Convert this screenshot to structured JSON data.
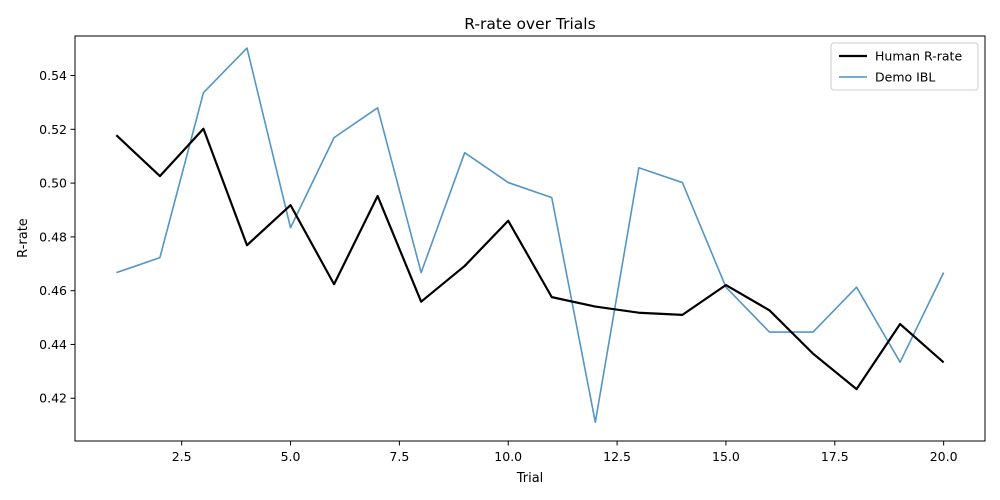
{
  "chart_data": {
    "type": "line",
    "title": "R-rate over Trials",
    "xlabel": "Trial",
    "ylabel": "R-rate",
    "xlim": [
      0.05,
      20.95
    ],
    "ylim": [
      0.4041,
      0.5547
    ],
    "xticks": [
      2.5,
      5.0,
      7.5,
      10.0,
      12.5,
      15.0,
      17.5,
      20.0
    ],
    "xtick_labels": [
      "2.5",
      "5.0",
      "7.5",
      "10.0",
      "12.5",
      "15.0",
      "17.5",
      "20.0"
    ],
    "yticks": [
      0.42,
      0.44,
      0.46,
      0.48,
      0.5,
      0.52,
      0.54
    ],
    "ytick_labels": [
      "0.42",
      "0.44",
      "0.46",
      "0.48",
      "0.50",
      "0.52",
      "0.54"
    ],
    "grid": false,
    "legend_position": "top-right",
    "x": [
      1,
      2,
      3,
      4,
      5,
      6,
      7,
      8,
      9,
      10,
      11,
      12,
      13,
      14,
      15,
      16,
      17,
      18,
      19,
      20
    ],
    "series": [
      {
        "name": "Human R-rate",
        "color": "#000000",
        "values": [
          0.5178,
          0.5026,
          0.5202,
          0.4769,
          0.4918,
          0.4624,
          0.4952,
          0.4559,
          0.4692,
          0.486,
          0.4576,
          0.4541,
          0.4518,
          0.451,
          0.4621,
          0.4527,
          0.4366,
          0.4234,
          0.4476,
          0.4333
        ]
      },
      {
        "name": "Demo IBL",
        "color": "#4a90c2",
        "values": [
          0.4667,
          0.4723,
          0.5336,
          0.5502,
          0.4834,
          0.5169,
          0.528,
          0.4667,
          0.5113,
          0.5002,
          0.4946,
          0.4111,
          0.5057,
          0.5002,
          0.4613,
          0.4446,
          0.4446,
          0.4613,
          0.4334,
          0.4667
        ]
      }
    ]
  }
}
